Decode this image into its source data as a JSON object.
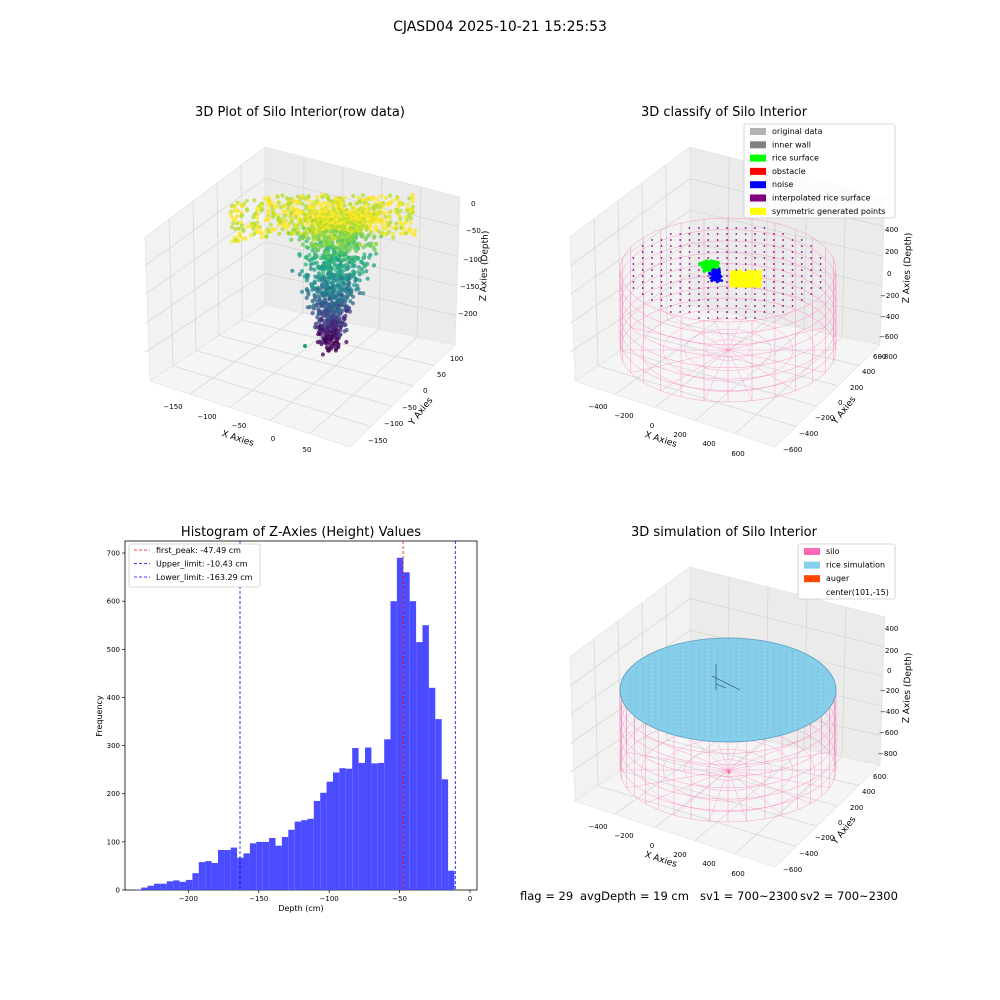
{
  "figure": {
    "suptitle": "CJASD04 2025-10-21 15:25:53",
    "footer": {
      "flag": "flag = 29",
      "avg_depth": "avgDepth = 19 cm",
      "sv1": "sv1 = 700~2300",
      "sv2": "sv2 = 700~2300"
    }
  },
  "colors": {
    "original_data": "#b3b3b3",
    "inner_wall": "#808080",
    "rice_surface": "#00ff00",
    "obstacle": "#ff0000",
    "noise": "#0000ff",
    "interpolated_rice_surface": "#800080",
    "symmetric_generated_points": "#ffff00",
    "silo": "#ff69b4",
    "rice_simulation": "#87ceeb",
    "auger": "#ff4500",
    "hist_bar": "#4b4bff",
    "first_peak_line": "#ff0000",
    "limit_line": "#0000ff"
  },
  "chart_data": [
    {
      "type": "scatter",
      "panel": "raw",
      "title": "3D Plot of Silo Interior(row data)",
      "xlabel": "X Axies",
      "ylabel": "Y Axies",
      "zlabel": "Z Axies (Depth)",
      "x_ticks": [
        "−150",
        "−100",
        "−50",
        "0",
        "50"
      ],
      "y_ticks": [
        "100",
        "50",
        "0",
        "−50",
        "−100",
        "−150"
      ],
      "z_ticks": [
        "0",
        "−50",
        "−100",
        "−150",
        "−200"
      ],
      "xlim": [
        -180,
        80
      ],
      "ylim": [
        -170,
        120
      ],
      "zlim": [
        -240,
        10
      ],
      "colormap": "viridis",
      "description_points": "dense point cloud, surface near z 0 to -50, funnel down to about -230"
    },
    {
      "type": "scatter",
      "panel": "classify",
      "title": "3D classify of Silo Interior",
      "xlabel": "X Axies",
      "ylabel": "Y Axies",
      "zlabel": "Z Axies (Depth)",
      "x_ticks": [
        "−400",
        "−200",
        "0",
        "200",
        "400",
        "600"
      ],
      "y_ticks": [
        "600",
        "400",
        "200",
        "0",
        "−200",
        "−400",
        "−600"
      ],
      "z_ticks": [
        "400",
        "200",
        "0",
        "−200",
        "−400",
        "−600",
        "−800"
      ],
      "legend": [
        {
          "label": "original data",
          "color": "#b3b3b3"
        },
        {
          "label": "inner wall",
          "color": "#808080"
        },
        {
          "label": "rice surface",
          "color": "#00ff00"
        },
        {
          "label": "obstacle",
          "color": "#ff0000"
        },
        {
          "label": "noise",
          "color": "#0000ff"
        },
        {
          "label": "interpolated rice surface",
          "color": "#800080"
        },
        {
          "label": "symmetric generated points",
          "color": "#ffff00"
        }
      ]
    },
    {
      "type": "bar",
      "panel": "histogram",
      "title": "Histogram of Z-Axies (Height) Values",
      "xlabel": "Depth (cm)",
      "ylabel": "Frequency",
      "xlim": [
        -245,
        5
      ],
      "ylim": [
        0,
        725
      ],
      "x_ticks": [
        -200,
        -150,
        -100,
        -50,
        0
      ],
      "y_ticks": [
        0,
        100,
        200,
        300,
        400,
        500,
        600,
        700
      ],
      "bin_start": -238,
      "bin_width": 4.54,
      "values": [
        1,
        5,
        9,
        13,
        13,
        18,
        20,
        17,
        21,
        35,
        58,
        60,
        56,
        83,
        83,
        88,
        67,
        76,
        97,
        100,
        100,
        108,
        92,
        110,
        125,
        142,
        145,
        148,
        185,
        202,
        225,
        244,
        253,
        252,
        295,
        264,
        296,
        263,
        264,
        313,
        600,
        690,
        660,
        600,
        515,
        550,
        420,
        355,
        230,
        40
      ],
      "lines": [
        {
          "label": "first_peak: -47.49 cm",
          "x": -47.49,
          "color": "#ff0000"
        },
        {
          "label": "Upper_limit: -10.43 cm",
          "x": -10.43,
          "color": "#0000ff"
        },
        {
          "label": "Lower_limit: -163.29 cm",
          "x": -163.29,
          "color": "#0000ff"
        }
      ]
    },
    {
      "type": "surface",
      "panel": "simulation",
      "title": "3D simulation of Silo Interior",
      "xlabel": "X Axies",
      "ylabel": "Y Axies",
      "zlabel": "Z Axies (Depth)",
      "x_ticks": [
        "−400",
        "−200",
        "0",
        "200",
        "400",
        "600"
      ],
      "y_ticks": [
        "600",
        "400",
        "200",
        "0",
        "−200",
        "−400",
        "−600"
      ],
      "z_ticks": [
        "400",
        "200",
        "0",
        "−200",
        "−400",
        "−600",
        "−800"
      ],
      "legend": [
        {
          "label": "silo",
          "color": "#ff69b4"
        },
        {
          "label": "rice simulation",
          "color": "#87ceeb"
        },
        {
          "label": "auger",
          "color": "#ff4500"
        },
        {
          "label": "center(101,-15)",
          "color": ""
        }
      ]
    }
  ]
}
